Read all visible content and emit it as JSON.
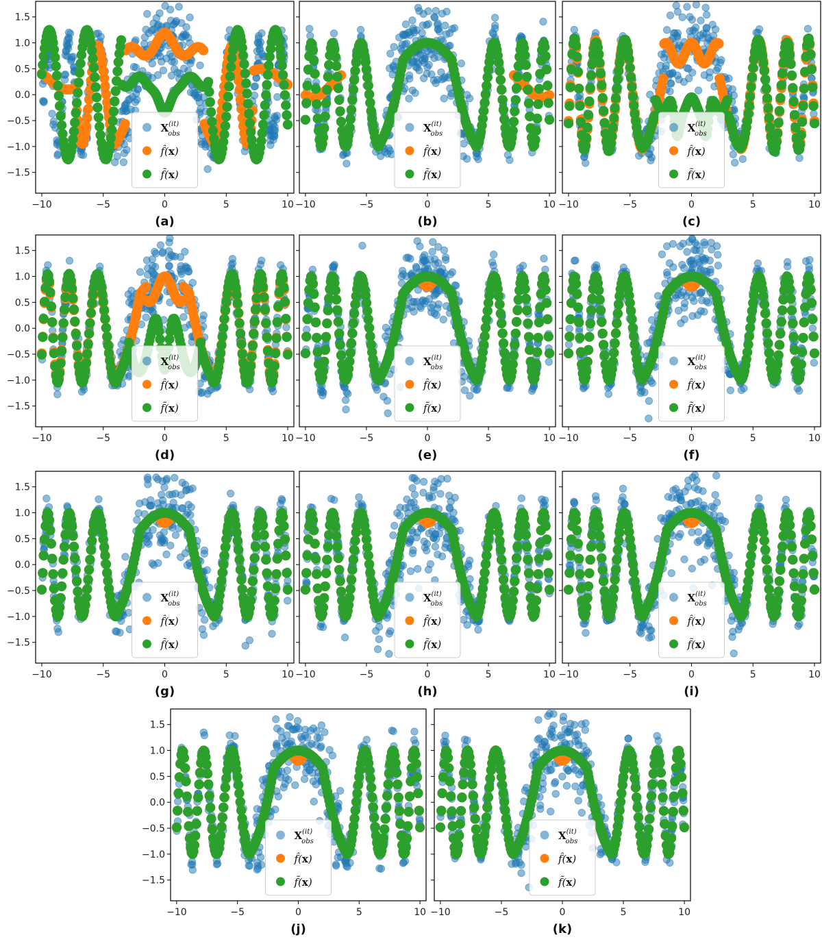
{
  "colors": {
    "observations": "#1f77b4",
    "estimate": "#ff7f0e",
    "reconstruction": "#2ca02c"
  },
  "legend": {
    "entries": [
      {
        "label": "X",
        "sup": "(it)",
        "sub": "obs",
        "color": "#1f77b4"
      },
      {
        "label": "f(x)",
        "accent": "hat",
        "color": "#ff7f0e"
      },
      {
        "label": "f(x)",
        "accent": "tilde",
        "color": "#2ca02c"
      }
    ]
  },
  "chart_data": [
    {
      "type": "scatter",
      "panel": "(a)",
      "xlim": [
        -10.5,
        10.5
      ],
      "ylim": [
        -1.9,
        1.8
      ],
      "xticks": [
        -10,
        -5,
        0,
        5,
        10
      ],
      "yticks": [
        -1.5,
        -1.0,
        -0.5,
        0.0,
        0.5,
        1.0,
        1.5
      ],
      "estimate_shape": "partial",
      "reconstruction_shape": "partial"
    },
    {
      "type": "scatter",
      "panel": "(b)",
      "xlim": [
        -10.5,
        10.5
      ],
      "ylim": [
        -1.9,
        1.8
      ],
      "xticks": [
        -10,
        -5,
        0,
        5,
        10
      ],
      "yticks": [
        -1.5,
        -1.0,
        -0.5,
        0.0,
        0.5,
        1.0,
        1.5
      ],
      "estimate_shape": "partial",
      "reconstruction_shape": "close"
    },
    {
      "type": "scatter",
      "panel": "(c)",
      "xlim": [
        -10.5,
        10.5
      ],
      "ylim": [
        -1.9,
        1.8
      ],
      "xticks": [
        -10,
        -5,
        0,
        5,
        10
      ],
      "yticks": [
        -1.5,
        -1.0,
        -0.5,
        0.0,
        0.5,
        1.0,
        1.5
      ],
      "estimate_shape": "partial",
      "reconstruction_shape": "partial"
    },
    {
      "type": "scatter",
      "panel": "(d)",
      "xlim": [
        -10.5,
        10.5
      ],
      "ylim": [
        -1.9,
        1.8
      ],
      "xticks": [
        -10,
        -5,
        0,
        5,
        10
      ],
      "yticks": [
        -1.5,
        -1.0,
        -0.5,
        0.0,
        0.5,
        1.0,
        1.5
      ],
      "estimate_shape": "partial",
      "reconstruction_shape": "partial"
    },
    {
      "type": "scatter",
      "panel": "(e)",
      "xlim": [
        -10.5,
        10.5
      ],
      "ylim": [
        -1.9,
        1.8
      ],
      "xticks": [
        -10,
        -5,
        0,
        5,
        10
      ],
      "yticks": [
        -1.5,
        -1.0,
        -0.5,
        0.0,
        0.5,
        1.0,
        1.5
      ],
      "estimate_shape": "close",
      "reconstruction_shape": "close"
    },
    {
      "type": "scatter",
      "panel": "(f)",
      "xlim": [
        -10.5,
        10.5
      ],
      "ylim": [
        -1.9,
        1.8
      ],
      "xticks": [
        -10,
        -5,
        0,
        5,
        10
      ],
      "yticks": [
        -1.5,
        -1.0,
        -0.5,
        0.0,
        0.5,
        1.0,
        1.5
      ],
      "estimate_shape": "close",
      "reconstruction_shape": "close"
    },
    {
      "type": "scatter",
      "panel": "(g)",
      "xlim": [
        -10.5,
        10.5
      ],
      "ylim": [
        -1.9,
        1.8
      ],
      "xticks": [
        -10,
        -5,
        0,
        5,
        10
      ],
      "yticks": [
        -1.5,
        -1.0,
        -0.5,
        0.0,
        0.5,
        1.0,
        1.5
      ],
      "estimate_shape": "close",
      "reconstruction_shape": "close"
    },
    {
      "type": "scatter",
      "panel": "(h)",
      "xlim": [
        -10.5,
        10.5
      ],
      "ylim": [
        -1.9,
        1.8
      ],
      "xticks": [
        -10,
        -5,
        0,
        5,
        10
      ],
      "yticks": [
        -1.5,
        -1.0,
        -0.5,
        0.0,
        0.5,
        1.0,
        1.5
      ],
      "estimate_shape": "close",
      "reconstruction_shape": "close"
    },
    {
      "type": "scatter",
      "panel": "(i)",
      "xlim": [
        -10.5,
        10.5
      ],
      "ylim": [
        -1.9,
        1.8
      ],
      "xticks": [
        -10,
        -5,
        0,
        5,
        10
      ],
      "yticks": [
        -1.5,
        -1.0,
        -0.5,
        0.0,
        0.5,
        1.0,
        1.5
      ],
      "estimate_shape": "close",
      "reconstruction_shape": "close"
    },
    {
      "type": "scatter",
      "panel": "(j)",
      "xlim": [
        -10.5,
        10.5
      ],
      "ylim": [
        -1.9,
        1.8
      ],
      "xticks": [
        -10,
        -5,
        0,
        5,
        10
      ],
      "yticks": [
        -1.5,
        -1.0,
        -0.5,
        0.0,
        0.5,
        1.0,
        1.5
      ],
      "estimate_shape": "close",
      "reconstruction_shape": "close"
    },
    {
      "type": "scatter",
      "panel": "(k)",
      "xlim": [
        -10.5,
        10.5
      ],
      "ylim": [
        -1.9,
        1.8
      ],
      "xticks": [
        -10,
        -5,
        0,
        5,
        10
      ],
      "yticks": [
        -1.5,
        -1.0,
        -0.5,
        0.0,
        0.5,
        1.0,
        1.5
      ],
      "estimate_shape": "close",
      "reconstruction_shape": "close"
    }
  ]
}
